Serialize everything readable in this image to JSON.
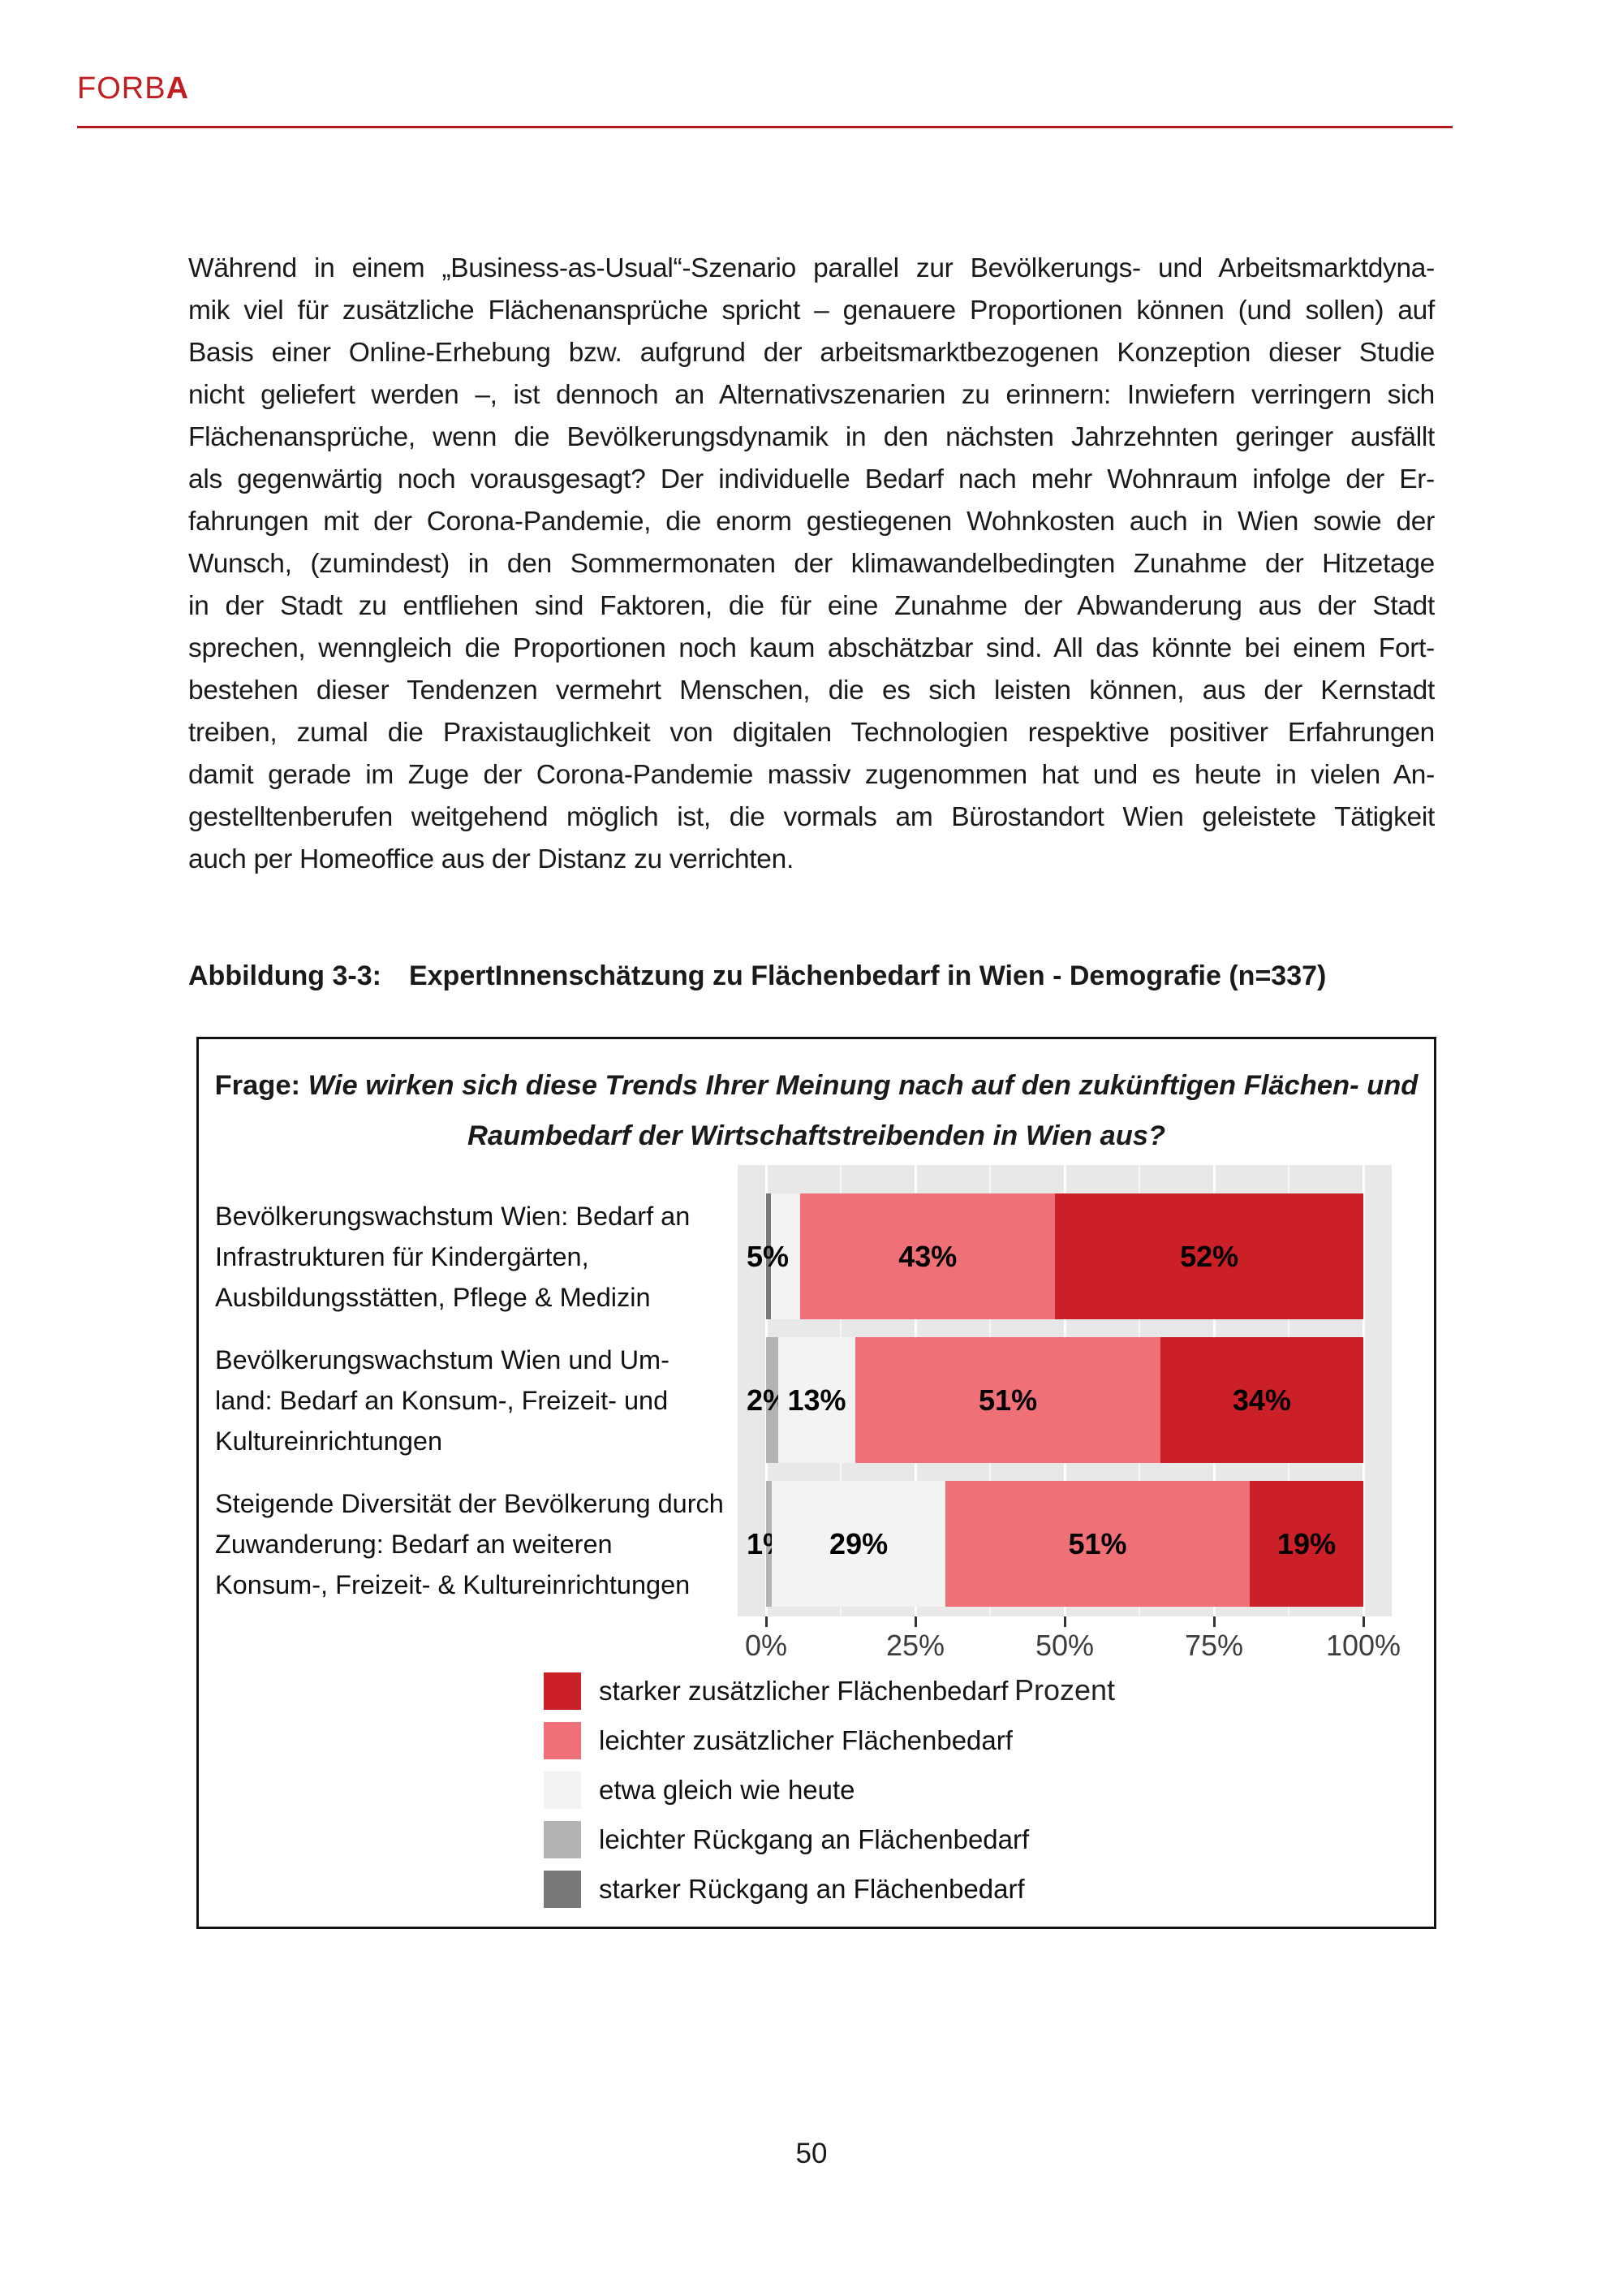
{
  "header": {
    "brand_regular": "FORB",
    "brand_bold": "A"
  },
  "paragraph_lines": [
    "Während in einem „Business-as-Usual“-Szenario parallel zur Bevölkerungs- und Arbeitsmarktdyna-",
    "mik viel für zusätzliche Flächenansprüche spricht – genauere Proportionen können (und sollen) auf",
    "Basis einer Online-Erhebung bzw. aufgrund der arbeitsmarktbezogenen Konzeption dieser Studie",
    "nicht geliefert werden –, ist dennoch an Alternativszenarien zu erinnern: Inwiefern verringern sich",
    "Flächenansprüche, wenn die Bevölkerungsdynamik in den nächsten Jahrzehnten geringer ausfällt",
    "als gegenwärtig noch vorausgesagt? Der individuelle Bedarf nach mehr Wohnraum infolge der Er-",
    "fahrungen mit der Corona-Pandemie, die enorm gestiegenen Wohnkosten auch in Wien sowie der",
    "Wunsch, (zumindest) in den Sommermonaten der klimawandelbedingten Zunahme der Hitzetage",
    "in der Stadt zu entfliehen sind Faktoren, die für eine Zunahme der Abwanderung aus der Stadt",
    "sprechen, wenngleich die Proportionen noch kaum abschätzbar sind. All das könnte bei einem Fort-",
    "bestehen dieser Tendenzen vermehrt Menschen, die es sich leisten können, aus der Kernstadt",
    "treiben, zumal die Praxistauglichkeit von digitalen Technologien respektive positiver Erfahrungen",
    "damit gerade im Zuge der Corona-Pandemie massiv zugenommen hat und es heute in vielen An-",
    "gestelltenberufen weitgehend möglich ist, die vormals am Bürostandort Wien geleistete Tätigkeit",
    "auch per Homeoffice aus der Distanz zu verrichten."
  ],
  "caption": {
    "label": "Abbildung 3-3:",
    "text": "ExpertInnenschätzung zu Flächenbedarf in Wien - Demografie (n=337)"
  },
  "figure": {
    "title_prefix": "Frage:",
    "title_line1_rest": "Wie wirken sich diese Trends Ihrer Meinung nach auf den zukünftigen Flächen- und",
    "title_line2": "Raumbedarf der Wirtschaftstreibenden in Wien aus?"
  },
  "chart_data": {
    "type": "bar",
    "orientation": "horizontal",
    "stacked": true,
    "xlabel": "Prozent",
    "xlim": [
      0,
      100
    ],
    "x_ticks": [
      "0%",
      "25%",
      "50%",
      "75%",
      "100%"
    ],
    "grid": true,
    "legend_position": "bottom-left",
    "panel_background": "#e8e8e8",
    "palette": {
      "starker zusätzlicher Flächenbedarf": "#cb2028",
      "leichter zusätzlicher Flächenbedarf": "#ef7177",
      "etwa gleich wie heute": "#f3f3f3",
      "leichter Rückgang an Flächenbedarf": "#b3b3b3",
      "starker Rückgang an Flächenbedarf": "#787878"
    },
    "legend": [
      "starker zusätzlicher Flächenbedarf",
      "leichter zusätzlicher Flächenbedarf",
      "etwa gleich wie heute",
      "leichter Rückgang an Flächenbedarf",
      "starker Rückgang an Flächenbedarf"
    ],
    "categories": [
      [
        "Bevölkerungswachstum Wien: Bedarf an",
        "Infrastrukturen für Kindergärten,",
        "Ausbildungsstätten, Pflege & Medizin"
      ],
      [
        "Bevölkerungswachstum Wien und Um-",
        "land: Bedarf an Konsum-, Freizeit- und",
        "Kultureinrichtungen"
      ],
      [
        "Steigende Diversität der Bevölkerung durch",
        "Zuwanderung: Bedarf an weiteren",
        "Konsum-, Freizeit- & Kultureinrichtungen"
      ]
    ],
    "rows": [
      {
        "segments": [
          {
            "series": "starker Rückgang an Flächenbedarf",
            "value": 0.8,
            "label": "",
            "label_pos": "none"
          },
          {
            "series": "etwa gleich wie heute",
            "value": 5,
            "label": "5%",
            "label_pos": "outside-left"
          },
          {
            "series": "leichter zusätzlicher Flächenbedarf",
            "value": 43,
            "label": "43%",
            "label_pos": "inside"
          },
          {
            "series": "starker zusätzlicher Flächenbedarf",
            "value": 52,
            "label": "52%",
            "label_pos": "inside"
          }
        ]
      },
      {
        "segments": [
          {
            "series": "leichter Rückgang an Flächenbedarf",
            "value": 2,
            "label": "2%",
            "label_pos": "outside-left"
          },
          {
            "series": "etwa gleich wie heute",
            "value": 13,
            "label": "13%",
            "label_pos": "inside"
          },
          {
            "series": "leichter zusätzlicher Flächenbedarf",
            "value": 51,
            "label": "51%",
            "label_pos": "inside"
          },
          {
            "series": "starker zusätzlicher Flächenbedarf",
            "value": 34,
            "label": "34%",
            "label_pos": "inside"
          }
        ]
      },
      {
        "segments": [
          {
            "series": "leichter Rückgang an Flächenbedarf",
            "value": 1,
            "label": "1%",
            "label_pos": "outside-left"
          },
          {
            "series": "etwa gleich wie heute",
            "value": 29,
            "label": "29%",
            "label_pos": "inside"
          },
          {
            "series": "leichter zusätzlicher Flächenbedarf",
            "value": 51,
            "label": "51%",
            "label_pos": "inside"
          },
          {
            "series": "starker zusätzlicher Flächenbedarf",
            "value": 19,
            "label": "19%",
            "label_pos": "inside"
          }
        ]
      }
    ]
  },
  "page_number": "50"
}
